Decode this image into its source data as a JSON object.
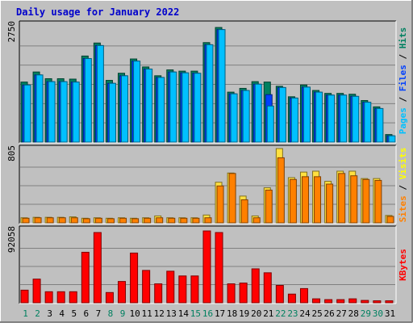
{
  "chart_data": {
    "type": "bar",
    "title": "Daily usage for January 2022",
    "categories": [
      "1",
      "2",
      "3",
      "4",
      "5",
      "6",
      "7",
      "8",
      "9",
      "10",
      "11",
      "12",
      "13",
      "14",
      "15",
      "16",
      "17",
      "18",
      "19",
      "20",
      "21",
      "22",
      "23",
      "24",
      "25",
      "26",
      "27",
      "28",
      "29",
      "30",
      "31"
    ],
    "weekend_days": [
      "1",
      "2",
      "8",
      "9",
      "15",
      "16",
      "22",
      "23",
      "29",
      "30"
    ],
    "panels": [
      {
        "id": "hits",
        "ymax_label": "2750",
        "ylim": [
          0,
          2750
        ],
        "legend": [
          {
            "text": "Pages",
            "color": "#00c0ff"
          },
          {
            "text": " / ",
            "color": "#000000"
          },
          {
            "text": "Files",
            "color": "#0040ff"
          },
          {
            "text": " / ",
            "color": "#000000"
          },
          {
            "text": "Hits",
            "color": "#008060"
          }
        ],
        "series": [
          {
            "name": "Hits",
            "color": "#008060",
            "values": [
              1430,
              1670,
              1510,
              1510,
              1500,
              2050,
              2360,
              1470,
              1640,
              1980,
              1790,
              1580,
              1720,
              1690,
              1690,
              2370,
              2730,
              1190,
              1280,
              1440,
              1430,
              1330,
              1080,
              1360,
              1230,
              1160,
              1160,
              1140,
              990,
              840,
              180
            ]
          },
          {
            "name": "Files",
            "color": "#0040ff",
            "values": [
              1360,
              1600,
              1440,
              1440,
              1430,
              1990,
              2300,
              1400,
              1580,
              1930,
              1740,
              1540,
              1670,
              1650,
              1640,
              2320,
              2680,
              1150,
              1230,
              1380,
              1130,
              1300,
              1050,
              1310,
              1190,
              1120,
              1120,
              1090,
              950,
              800,
              150
            ]
          },
          {
            "name": "Pages",
            "color": "#00c0ff",
            "values": [
              1360,
              1600,
              1440,
              1440,
              1430,
              1990,
              2300,
              1400,
              1580,
              1930,
              1740,
              1540,
              1670,
              1650,
              1640,
              2320,
              2680,
              1150,
              1230,
              1380,
              860,
              1300,
              1050,
              1310,
              1190,
              1120,
              1120,
              1090,
              950,
              800,
              150
            ]
          }
        ]
      },
      {
        "id": "visits",
        "ymax_label": "805",
        "ylim": [
          0,
          805
        ],
        "legend": [
          {
            "text": "Sites",
            "color": "#ff8000"
          },
          {
            "text": " / ",
            "color": "#000000"
          },
          {
            "text": "Visits",
            "color": "#ffff00"
          }
        ],
        "series": [
          {
            "name": "Visits",
            "color": "#ffe040",
            "values": [
              55,
              60,
              60,
              60,
              65,
              50,
              55,
              50,
              55,
              50,
              55,
              75,
              55,
              55,
              55,
              85,
              440,
              540,
              290,
              75,
              380,
              805,
              490,
              550,
              560,
              450,
              560,
              560,
              480,
              480,
              80
            ]
          },
          {
            "name": "Sites",
            "color": "#ff8000",
            "values": [
              50,
              55,
              55,
              55,
              55,
              45,
              50,
              45,
              50,
              45,
              50,
              55,
              50,
              50,
              50,
              55,
              400,
              535,
              250,
              55,
              355,
              705,
              470,
              500,
              500,
              420,
              535,
              510,
              470,
              460,
              70
            ]
          }
        ]
      },
      {
        "id": "kbytes",
        "ymax_label": "92058",
        "ylim": [
          0,
          92058
        ],
        "legend": [
          {
            "text": "KBytes",
            "color": "#ff0000"
          }
        ],
        "series": [
          {
            "name": "KBytes",
            "color": "#ff0000",
            "values": [
              16000,
              30000,
              14000,
              14000,
              14000,
              64000,
              89000,
              13000,
              27000,
              63000,
              41000,
              24000,
              40000,
              34000,
              34000,
              91000,
              89000,
              24000,
              25000,
              43000,
              38000,
              22000,
              11000,
              18000,
              5000,
              4000,
              4000,
              5000,
              3000,
              2500,
              2500
            ]
          }
        ]
      }
    ]
  }
}
